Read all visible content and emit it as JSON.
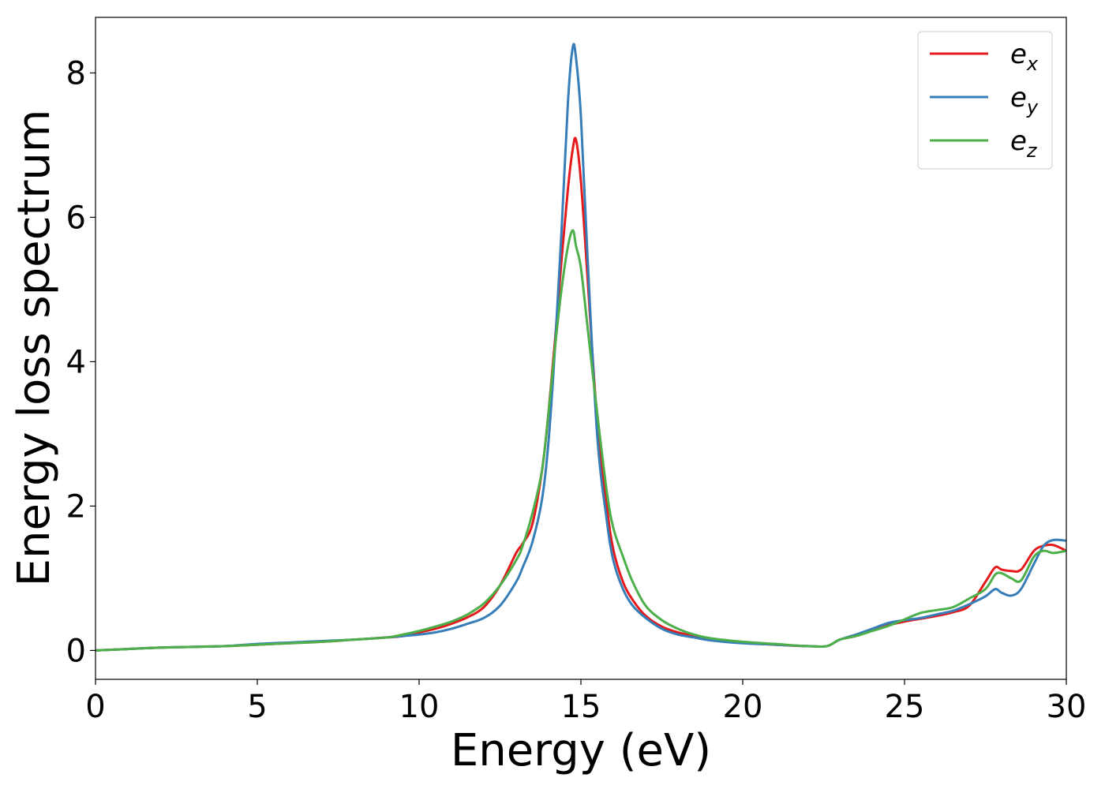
{
  "chart_data": {
    "type": "line",
    "title": "",
    "xlabel": "Energy (eV)",
    "ylabel": "Energy loss spectrum",
    "xlim": [
      0,
      30
    ],
    "ylim": [
      -0.4,
      8.77
    ],
    "xticks": [
      0,
      5,
      10,
      15,
      20,
      25,
      30
    ],
    "yticks": [
      0,
      2,
      4,
      6,
      8
    ],
    "grid": false,
    "legend_position": "top-right",
    "x": [
      0,
      1,
      2,
      3,
      4,
      5,
      6,
      7,
      8,
      9,
      9.5,
      10,
      10.5,
      11,
      11.5,
      12,
      12.5,
      13,
      13.2,
      13.5,
      13.8,
      14,
      14.2,
      14.4,
      14.6,
      14.75,
      14.85,
      15,
      15.2,
      15.5,
      15.8,
      16,
      16.3,
      16.6,
      17,
      17.5,
      18,
      18.5,
      19,
      20,
      21,
      22,
      22.6,
      23,
      23.5,
      24,
      24.5,
      25,
      25.5,
      26,
      26.5,
      27,
      27.5,
      27.8,
      28,
      28.3,
      28.6,
      29,
      29.3,
      29.6,
      30
    ],
    "series": [
      {
        "name": "e",
        "sub": "x",
        "color": "#e41a1c",
        "values": [
          0,
          0.02,
          0.04,
          0.05,
          0.06,
          0.08,
          0.1,
          0.12,
          0.15,
          0.18,
          0.2,
          0.25,
          0.3,
          0.37,
          0.46,
          0.6,
          0.9,
          1.35,
          1.48,
          1.75,
          2.5,
          3.3,
          4.3,
          5.4,
          6.4,
          6.95,
          7.07,
          6.5,
          5.2,
          3.2,
          2.0,
          1.4,
          0.95,
          0.7,
          0.48,
          0.33,
          0.25,
          0.2,
          0.16,
          0.11,
          0.08,
          0.06,
          0.06,
          0.15,
          0.2,
          0.28,
          0.35,
          0.4,
          0.44,
          0.48,
          0.53,
          0.62,
          0.95,
          1.15,
          1.12,
          1.1,
          1.12,
          1.38,
          1.45,
          1.46,
          1.38
        ]
      },
      {
        "name": "e",
        "sub": "y",
        "color": "#377eb8",
        "values": [
          0,
          0.02,
          0.04,
          0.05,
          0.06,
          0.09,
          0.11,
          0.13,
          0.15,
          0.18,
          0.2,
          0.22,
          0.25,
          0.3,
          0.37,
          0.45,
          0.62,
          0.95,
          1.15,
          1.5,
          2.1,
          2.9,
          4.2,
          5.8,
          7.6,
          8.36,
          8.2,
          7.4,
          5.5,
          3.0,
          1.8,
          1.25,
          0.85,
          0.62,
          0.45,
          0.3,
          0.22,
          0.18,
          0.14,
          0.1,
          0.08,
          0.06,
          0.06,
          0.15,
          0.22,
          0.3,
          0.38,
          0.42,
          0.45,
          0.5,
          0.55,
          0.64,
          0.75,
          0.85,
          0.8,
          0.76,
          0.85,
          1.2,
          1.45,
          1.53,
          1.52
        ]
      },
      {
        "name": "e",
        "sub": "z",
        "color": "#4daf4a",
        "values": [
          0,
          0.02,
          0.04,
          0.05,
          0.06,
          0.08,
          0.1,
          0.12,
          0.15,
          0.18,
          0.22,
          0.27,
          0.33,
          0.4,
          0.5,
          0.65,
          0.9,
          1.25,
          1.45,
          1.9,
          2.5,
          3.3,
          4.2,
          5.0,
          5.6,
          5.82,
          5.6,
          5.3,
          4.5,
          3.3,
          2.2,
          1.7,
          1.3,
          0.95,
          0.62,
          0.42,
          0.3,
          0.22,
          0.17,
          0.12,
          0.09,
          0.06,
          0.06,
          0.15,
          0.2,
          0.27,
          0.34,
          0.43,
          0.52,
          0.56,
          0.6,
          0.72,
          0.85,
          1.05,
          1.07,
          1.0,
          0.97,
          1.3,
          1.38,
          1.35,
          1.38
        ]
      }
    ]
  }
}
